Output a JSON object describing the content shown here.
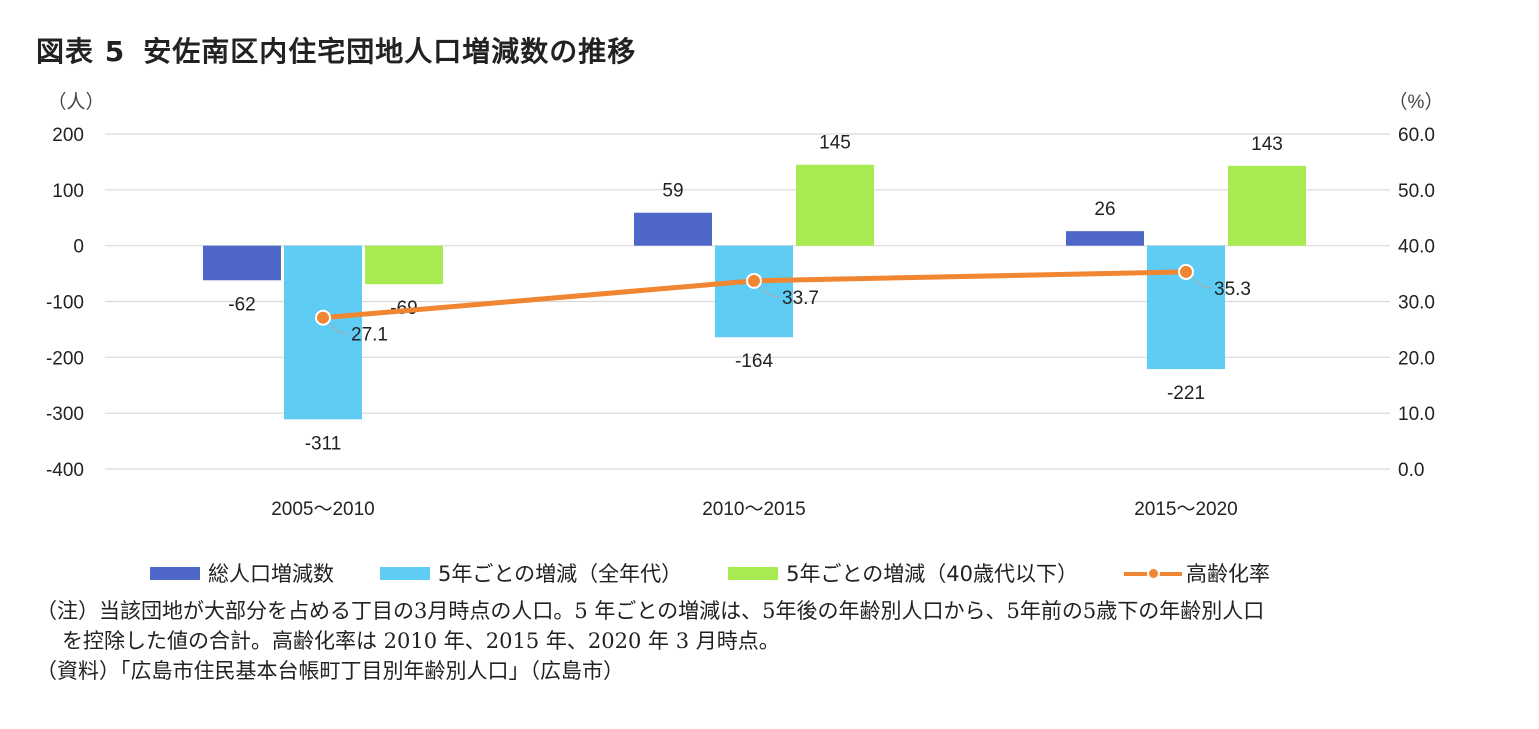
{
  "title": {
    "number": "図表 5",
    "text": "安佐南区内住宅団地人口増減数の推移"
  },
  "chart_data": {
    "type": "bar",
    "categories": [
      "2005～2010",
      "2010～2015",
      "2015～2020"
    ],
    "series": [
      {
        "name": "総人口増減数",
        "kind": "bar",
        "axis": "left",
        "color": "#4E67C8",
        "values": [
          -62,
          59,
          26
        ]
      },
      {
        "name": "5年ごとの増減（全年代）",
        "kind": "bar",
        "axis": "left",
        "color": "#5ECCF3",
        "values": [
          -311,
          -164,
          -221
        ]
      },
      {
        "name": "5年ごとの増減（40歳代以下）",
        "kind": "bar",
        "axis": "left",
        "color": "#A7EA52",
        "values": [
          -69,
          145,
          143
        ]
      },
      {
        "name": "高齢化率",
        "kind": "line",
        "axis": "right",
        "color": "#F08532",
        "values": [
          27.1,
          33.7,
          35.3
        ]
      }
    ],
    "bar_labels": [
      [
        "-62",
        "-311",
        "-69"
      ],
      [
        "59",
        "-164",
        "145"
      ],
      [
        "26",
        "-221",
        "143"
      ]
    ],
    "line_labels": [
      "27.1",
      "33.7",
      "35.3"
    ],
    "y_left": {
      "unit": "（人）",
      "min": -400,
      "max": 200,
      "ticks": [
        "200",
        "100",
        "0",
        "-100",
        "-200",
        "-300",
        "-400"
      ],
      "tick_values": [
        200,
        100,
        0,
        -100,
        -200,
        -300,
        -400
      ]
    },
    "y_right": {
      "unit": "（%）",
      "min": 0,
      "max": 60,
      "ticks": [
        "60.0",
        "50.0",
        "40.0",
        "30.0",
        "20.0",
        "10.0",
        "0.0"
      ],
      "tick_values": [
        60,
        50,
        40,
        30,
        20,
        10,
        0
      ]
    },
    "grid": true,
    "legend_position": "bottom"
  },
  "legend": [
    {
      "label": "総人口増減数",
      "color": "#4E67C8",
      "type": "bar"
    },
    {
      "label": "5年ごとの増減（全年代）",
      "color": "#5ECCF3",
      "type": "bar"
    },
    {
      "label": "5年ごとの増減（40歳代以下）",
      "color": "#A7EA52",
      "type": "bar"
    },
    {
      "label": "高齢化率",
      "color": "#F08532",
      "type": "line"
    }
  ],
  "notes": {
    "note_line1": "（注）当該団地が大部分を占める丁目の3月時点の人口。5 年ごとの増減は、5年後の年齢別人口から、5年前の5歳下の年齢別人口",
    "note_line2": "を控除した値の合計。高齢化率は 2010 年、2015 年、2020 年 3 月時点。",
    "source": "（資料）「広島市住民基本台帳町丁目別年齢別人口」（広島市）"
  }
}
